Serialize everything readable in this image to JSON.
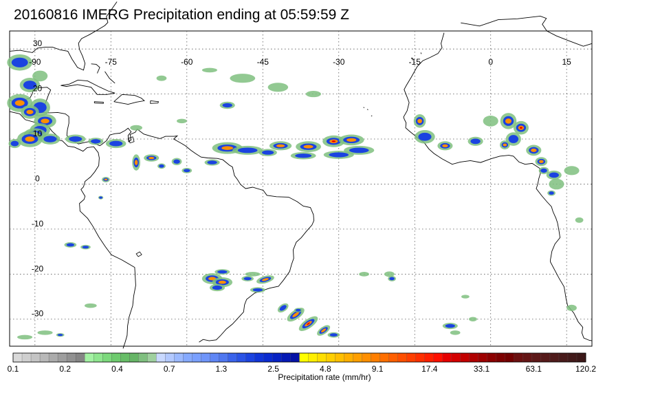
{
  "title": "20160816 IMERG Precipitation ending at 05:59:59 Z",
  "map": {
    "lon_range": [
      -95,
      20
    ],
    "lat_range": [
      -36,
      34
    ],
    "lon_labels": [
      "-90",
      "-75",
      "-60",
      "-45",
      "-30",
      "-15",
      "0",
      "15"
    ],
    "lat_labels": [
      "30",
      "20",
      "10",
      "0",
      "-10",
      "-20",
      "-30"
    ],
    "gridlines": "dotted"
  },
  "colorbar": {
    "label": "Precipitation rate (mm/hr)",
    "tick_labels": [
      "0.1",
      "0.2",
      "0.4",
      "0.7",
      "1.3",
      "2.5",
      "4.8",
      "9.1",
      "17.4",
      "33.1",
      "63.1",
      "120.2"
    ],
    "colors": [
      "#d9d9d9",
      "#cfcfcf",
      "#c4c4c4",
      "#b8b8b8",
      "#ababab",
      "#9e9e9e",
      "#919191",
      "#858585",
      "#a3f2a3",
      "#8fe68f",
      "#7cd97c",
      "#6ecb6e",
      "#67bd67",
      "#66b566",
      "#7fbf7f",
      "#9fd09f",
      "#c9d9ff",
      "#b3c9ff",
      "#9cbaff",
      "#86aaff",
      "#7aa0ff",
      "#6f95fa",
      "#5f86f5",
      "#4f77f0",
      "#3a63eb",
      "#2a53e6",
      "#1b43e0",
      "#1035d8",
      "#0a2bd0",
      "#0722c4",
      "#0519b5",
      "#0612a5",
      "#ffff00",
      "#ffef00",
      "#ffdf00",
      "#ffcf00",
      "#ffbf00",
      "#ffaf00",
      "#ff9f00",
      "#ff8f00",
      "#ff7f00",
      "#ff6f00",
      "#ff5f00",
      "#ff4f00",
      "#ff3f00",
      "#ff2f00",
      "#ff1f00",
      "#ff0f00",
      "#e60000",
      "#d40000",
      "#c20000",
      "#b00000",
      "#9e0000",
      "#8c0000",
      "#7d0000",
      "#720000",
      "#6b1010",
      "#641515",
      "#5d1818",
      "#561a1a",
      "#4f1b1b",
      "#481b1b",
      "#421a1a",
      "#3c1818"
    ]
  },
  "features": {
    "precipitation_colors": {
      "light": "#7fbf7f",
      "moderate": "#1b43e0",
      "heavy": "#ff8f00",
      "extreme": "#e60000"
    }
  }
}
